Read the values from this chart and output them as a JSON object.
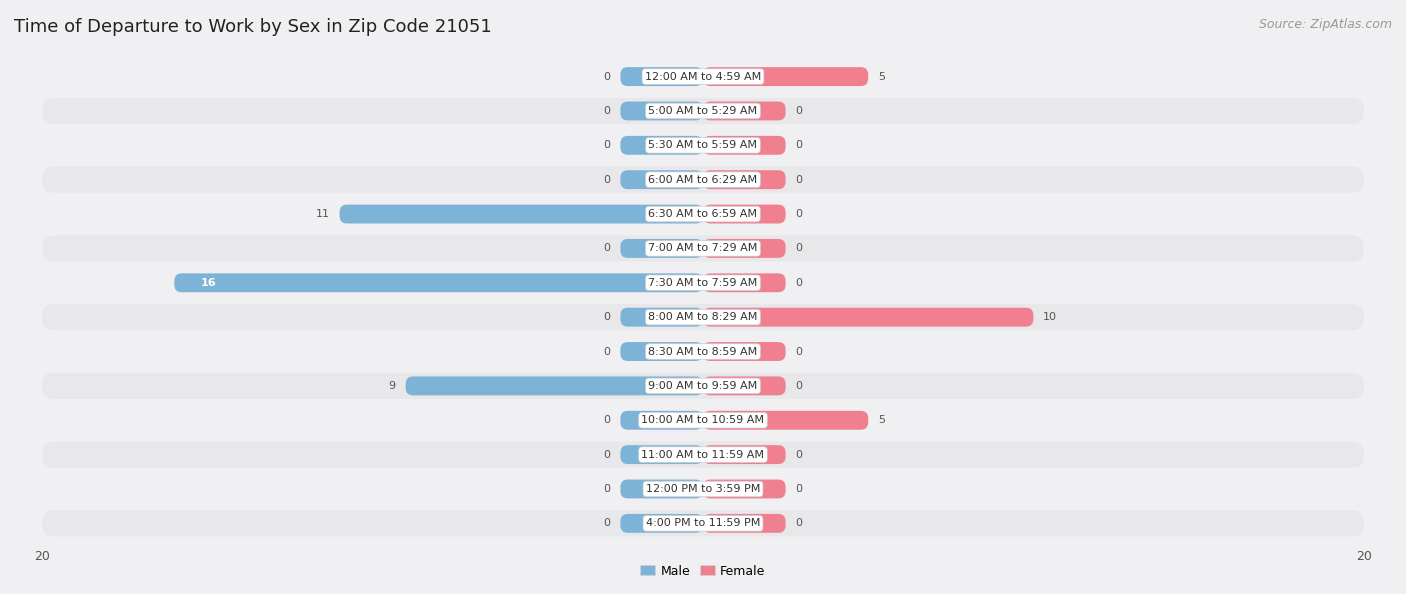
{
  "title": "Time of Departure to Work by Sex in Zip Code 21051",
  "source": "Source: ZipAtlas.com",
  "categories": [
    "12:00 AM to 4:59 AM",
    "5:00 AM to 5:29 AM",
    "5:30 AM to 5:59 AM",
    "6:00 AM to 6:29 AM",
    "6:30 AM to 6:59 AM",
    "7:00 AM to 7:29 AM",
    "7:30 AM to 7:59 AM",
    "8:00 AM to 8:29 AM",
    "8:30 AM to 8:59 AM",
    "9:00 AM to 9:59 AM",
    "10:00 AM to 10:59 AM",
    "11:00 AM to 11:59 AM",
    "12:00 PM to 3:59 PM",
    "4:00 PM to 11:59 PM"
  ],
  "male_values": [
    0,
    0,
    0,
    0,
    11,
    0,
    16,
    0,
    0,
    9,
    0,
    0,
    0,
    0
  ],
  "female_values": [
    5,
    0,
    0,
    0,
    0,
    0,
    0,
    10,
    0,
    0,
    5,
    0,
    0,
    0
  ],
  "male_color": "#7eb3d8",
  "female_color": "#f08090",
  "row_bg_even": "#f0f0f2",
  "row_bg_odd": "#e8e8ea",
  "xlim": 20,
  "title_fontsize": 13,
  "source_fontsize": 9,
  "category_fontsize": 8,
  "bar_value_fontsize": 8,
  "legend_fontsize": 9,
  "background_color": "#f0f0f2"
}
